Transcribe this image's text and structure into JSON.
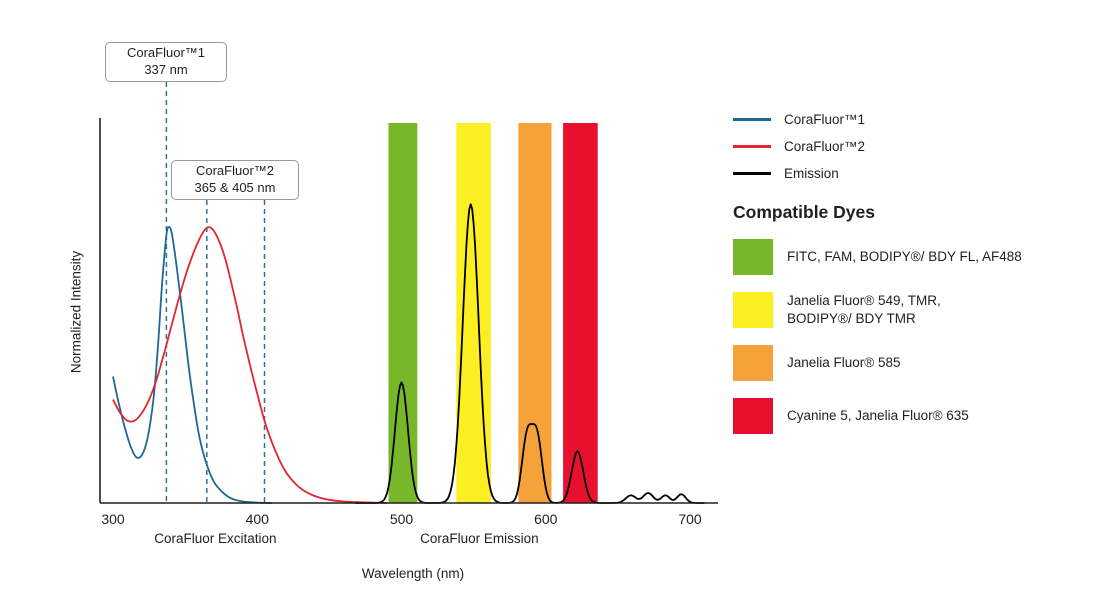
{
  "colors": {
    "cf1_blue": "#1e6896",
    "cf2_red": "#e32530",
    "emission_black": "#000000",
    "axis": "#231f20",
    "text": "#231f20",
    "callout_border": "#9a9a9a",
    "marker_dash_blue": "#2d6f9e"
  },
  "legend": {
    "series": [
      {
        "id": "cf1",
        "label": "CoraFluor™1",
        "color": "#1e6896"
      },
      {
        "id": "cf2",
        "label": "CoraFluor™2",
        "color": "#e32530"
      },
      {
        "id": "emission",
        "label": "Emission",
        "color": "#000000"
      }
    ],
    "dyes_heading": "Compatible Dyes",
    "dyes": [
      {
        "name": "green",
        "label": "FITC, FAM, BODIPY®/ BDY FL, AF488",
        "color": "#76b82a"
      },
      {
        "name": "yellow",
        "label": "Janelia Fluor® 549, TMR,\nBODIPY®/ BDY TMR",
        "color": "#fbee23"
      },
      {
        "name": "orange",
        "label": "Janelia Fluor® 585",
        "color": "#f5a23a"
      },
      {
        "name": "red",
        "label": "Cyanine 5, Janelia Fluor® 635",
        "color": "#e8112d"
      }
    ]
  },
  "callouts": [
    {
      "title": "CoraFluor™1",
      "value": "337 nm",
      "lines_nm": [
        337
      ]
    },
    {
      "title": "CoraFluor™2",
      "value": "365 & 405 nm",
      "lines_nm": [
        365,
        405
      ]
    }
  ],
  "chart_data": {
    "type": "line",
    "xlabel": "Wavelength (nm)",
    "ylabel": "Normalized Intensity",
    "x_ticks": [
      300,
      400,
      500,
      600,
      700
    ],
    "xlim": [
      300,
      710
    ],
    "ylim": [
      0,
      1.35
    ],
    "grid": false,
    "legend_position": "right",
    "x_region_labels": [
      {
        "label": "CoraFluor Excitation",
        "center_nm": 371
      },
      {
        "label": "CoraFluor Emission",
        "center_nm": 554
      }
    ],
    "excitation_markers_nm": [
      337,
      365,
      405
    ],
    "bands": [
      {
        "name": "green",
        "nm": [
          491,
          511
        ],
        "color": "#76b82a"
      },
      {
        "name": "yellow",
        "nm": [
          538,
          562
        ],
        "color": "#fbee23"
      },
      {
        "name": "orange",
        "nm": [
          581,
          604
        ],
        "color": "#f5a23a"
      },
      {
        "name": "red",
        "nm": [
          612,
          636
        ],
        "color": "#e8112d"
      }
    ],
    "series": [
      {
        "id": "cf1_excitation",
        "name": "CoraFluor™1",
        "color": "#1e6896",
        "points": [
          [
            300,
            0.33
          ],
          [
            304,
            0.26
          ],
          [
            308,
            0.2
          ],
          [
            312,
            0.15
          ],
          [
            316,
            0.12
          ],
          [
            320,
            0.125
          ],
          [
            324,
            0.17
          ],
          [
            328,
            0.27
          ],
          [
            331,
            0.4
          ],
          [
            334,
            0.57
          ],
          [
            337,
            0.7
          ],
          [
            339,
            0.72
          ],
          [
            341,
            0.7
          ],
          [
            344,
            0.62
          ],
          [
            348,
            0.5
          ],
          [
            352,
            0.37
          ],
          [
            356,
            0.26
          ],
          [
            360,
            0.17
          ],
          [
            365,
            0.1
          ],
          [
            370,
            0.055
          ],
          [
            376,
            0.028
          ],
          [
            382,
            0.012
          ],
          [
            390,
            0.004
          ],
          [
            400,
            0.001
          ],
          [
            410,
            0
          ]
        ]
      },
      {
        "id": "cf2_excitation",
        "name": "CoraFluor™2",
        "color": "#e32530",
        "points": [
          [
            300,
            0.27
          ],
          [
            305,
            0.235
          ],
          [
            310,
            0.215
          ],
          [
            315,
            0.215
          ],
          [
            320,
            0.235
          ],
          [
            325,
            0.27
          ],
          [
            330,
            0.32
          ],
          [
            335,
            0.385
          ],
          [
            340,
            0.455
          ],
          [
            345,
            0.525
          ],
          [
            350,
            0.59
          ],
          [
            355,
            0.645
          ],
          [
            360,
            0.69
          ],
          [
            364,
            0.715
          ],
          [
            367,
            0.72
          ],
          [
            370,
            0.71
          ],
          [
            374,
            0.68
          ],
          [
            378,
            0.635
          ],
          [
            382,
            0.575
          ],
          [
            386,
            0.51
          ],
          [
            390,
            0.44
          ],
          [
            395,
            0.36
          ],
          [
            400,
            0.285
          ],
          [
            405,
            0.215
          ],
          [
            410,
            0.16
          ],
          [
            415,
            0.115
          ],
          [
            420,
            0.08
          ],
          [
            426,
            0.052
          ],
          [
            432,
            0.033
          ],
          [
            438,
            0.021
          ],
          [
            445,
            0.012
          ],
          [
            452,
            0.007
          ],
          [
            460,
            0.004
          ],
          [
            470,
            0.002
          ],
          [
            480,
            0.001
          ],
          [
            490,
            0
          ]
        ]
      },
      {
        "id": "emission",
        "name": "Emission",
        "color": "#000000",
        "gaussian_peaks": [
          {
            "center": 500,
            "sigma": 4.5,
            "amplitude": 0.315
          },
          {
            "center": 548,
            "sigma": 5.5,
            "amplitude": 0.78
          },
          {
            "center": 587,
            "sigma": 3.5,
            "amplitude": 0.17
          },
          {
            "center": 594,
            "sigma": 3.5,
            "amplitude": 0.17
          },
          {
            "center": 622,
            "sigma": 4.0,
            "amplitude": 0.135
          },
          {
            "center": 659,
            "sigma": 3.5,
            "amplitude": 0.02
          },
          {
            "center": 671,
            "sigma": 3.5,
            "amplitude": 0.026
          },
          {
            "center": 683,
            "sigma": 3.0,
            "amplitude": 0.02
          },
          {
            "center": 694,
            "sigma": 3.0,
            "amplitude": 0.023
          }
        ]
      }
    ]
  }
}
